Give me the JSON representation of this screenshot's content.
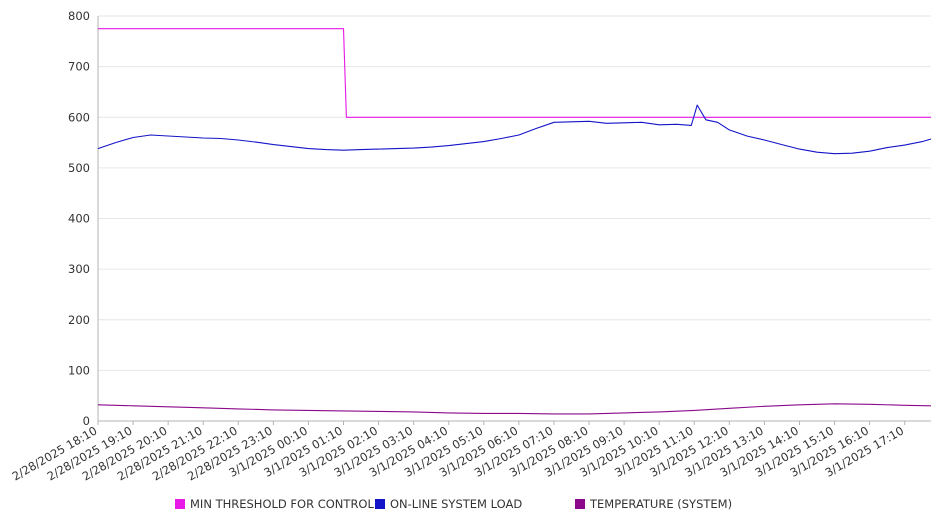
{
  "chart_data": {
    "type": "line",
    "title": "",
    "xlabel": "",
    "ylabel": "",
    "ylim": [
      0,
      800
    ],
    "yticks": [
      "0",
      "100",
      "200",
      "300",
      "400",
      "500",
      "600",
      "700",
      "800"
    ],
    "xticks": [
      "2/28/2025 18:10",
      "2/28/2025 19:10",
      "2/28/2025 20:10",
      "2/28/2025 21:10",
      "2/28/2025 22:10",
      "2/28/2025 23:10",
      "3/1/2025 00:10",
      "3/1/2025 01:10",
      "3/1/2025 02:10",
      "3/1/2025 03:10",
      "3/1/2025 04:10",
      "3/1/2025 05:10",
      "3/1/2025 06:10",
      "3/1/2025 07:10",
      "3/1/2025 08:10",
      "3/1/2025 09:10",
      "3/1/2025 10:10",
      "3/1/2025 11:10",
      "3/1/2025 12:10",
      "3/1/2025 13:10",
      "3/1/2025 14:10",
      "3/1/2025 15:10",
      "3/1/2025 16:10",
      "3/1/2025 17:10"
    ],
    "grid": true,
    "legend_position": "bottom",
    "series": [
      {
        "name": "MIN THRESHOLD FOR CONTROL",
        "color": "#e619e6",
        "points": [
          [
            "2/28/2025 18:10",
            775
          ],
          [
            "3/1/2025 01:10",
            775
          ],
          [
            "3/1/2025 01:15",
            600
          ],
          [
            "3/1/2025 17:55",
            600
          ]
        ]
      },
      {
        "name": "ON-LINE SYSTEM LOAD",
        "color": "#1414c8",
        "points": [
          [
            "2/28/2025 18:10",
            538
          ],
          [
            "2/28/2025 18:40",
            550
          ],
          [
            "2/28/2025 19:10",
            560
          ],
          [
            "2/28/2025 19:40",
            565
          ],
          [
            "2/28/2025 20:10",
            563
          ],
          [
            "2/28/2025 20:40",
            561
          ],
          [
            "2/28/2025 21:10",
            559
          ],
          [
            "2/28/2025 21:40",
            558
          ],
          [
            "2/28/2025 22:10",
            555
          ],
          [
            "2/28/2025 22:40",
            551
          ],
          [
            "2/28/2025 23:10",
            546
          ],
          [
            "2/28/2025 23:40",
            542
          ],
          [
            "3/1/2025 00:10",
            538
          ],
          [
            "3/1/2025 00:40",
            536
          ],
          [
            "3/1/2025 01:10",
            535
          ],
          [
            "3/1/2025 01:40",
            536
          ],
          [
            "3/1/2025 02:10",
            537
          ],
          [
            "3/1/2025 02:40",
            538
          ],
          [
            "3/1/2025 03:10",
            539
          ],
          [
            "3/1/2025 03:40",
            541
          ],
          [
            "3/1/2025 04:10",
            544
          ],
          [
            "3/1/2025 04:40",
            548
          ],
          [
            "3/1/2025 05:10",
            552
          ],
          [
            "3/1/2025 05:40",
            558
          ],
          [
            "3/1/2025 06:10",
            565
          ],
          [
            "3/1/2025 06:40",
            578
          ],
          [
            "3/1/2025 07:10",
            590
          ],
          [
            "3/1/2025 07:40",
            591
          ],
          [
            "3/1/2025 08:10",
            592
          ],
          [
            "3/1/2025 08:40",
            588
          ],
          [
            "3/1/2025 09:10",
            589
          ],
          [
            "3/1/2025 09:40",
            590
          ],
          [
            "3/1/2025 10:10",
            585
          ],
          [
            "3/1/2025 10:40",
            586
          ],
          [
            "3/1/2025 11:05",
            584
          ],
          [
            "3/1/2025 11:15",
            624
          ],
          [
            "3/1/2025 11:30",
            595
          ],
          [
            "3/1/2025 11:50",
            590
          ],
          [
            "3/1/2025 12:10",
            575
          ],
          [
            "3/1/2025 12:40",
            563
          ],
          [
            "3/1/2025 13:10",
            555
          ],
          [
            "3/1/2025 13:40",
            546
          ],
          [
            "3/1/2025 14:10",
            537
          ],
          [
            "3/1/2025 14:40",
            531
          ],
          [
            "3/1/2025 15:10",
            528
          ],
          [
            "3/1/2025 15:40",
            529
          ],
          [
            "3/1/2025 16:10",
            533
          ],
          [
            "3/1/2025 16:40",
            540
          ],
          [
            "3/1/2025 17:10",
            545
          ],
          [
            "3/1/2025 17:40",
            552
          ],
          [
            "3/1/2025 17:55",
            557
          ]
        ]
      },
      {
        "name": "TEMPERATURE (SYSTEM)",
        "color": "#8b0a8b",
        "points": [
          [
            "2/28/2025 18:10",
            32
          ],
          [
            "2/28/2025 19:10",
            30
          ],
          [
            "2/28/2025 20:10",
            28
          ],
          [
            "2/28/2025 21:10",
            26
          ],
          [
            "2/28/2025 22:10",
            24
          ],
          [
            "2/28/2025 23:10",
            22
          ],
          [
            "3/1/2025 00:10",
            21
          ],
          [
            "3/1/2025 01:10",
            20
          ],
          [
            "3/1/2025 02:10",
            19
          ],
          [
            "3/1/2025 03:10",
            18
          ],
          [
            "3/1/2025 04:10",
            16
          ],
          [
            "3/1/2025 05:10",
            15
          ],
          [
            "3/1/2025 06:10",
            15
          ],
          [
            "3/1/2025 07:10",
            14
          ],
          [
            "3/1/2025 08:10",
            14
          ],
          [
            "3/1/2025 09:10",
            16
          ],
          [
            "3/1/2025 10:10",
            18
          ],
          [
            "3/1/2025 11:10",
            21
          ],
          [
            "3/1/2025 12:10",
            25
          ],
          [
            "3/1/2025 13:10",
            29
          ],
          [
            "3/1/2025 14:10",
            32
          ],
          [
            "3/1/2025 15:10",
            34
          ],
          [
            "3/1/2025 16:10",
            33
          ],
          [
            "3/1/2025 17:10",
            31
          ],
          [
            "3/1/2025 17:55",
            30
          ]
        ]
      }
    ]
  }
}
